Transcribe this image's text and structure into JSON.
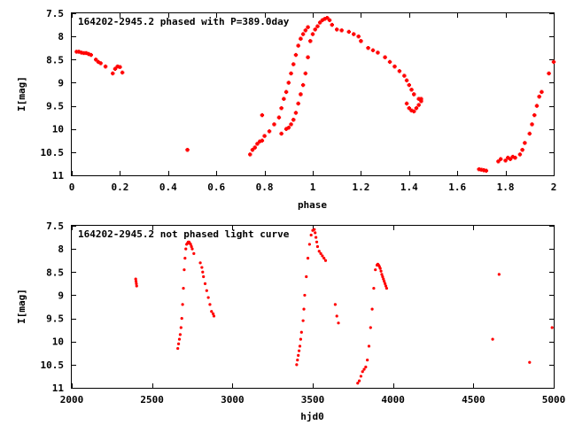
{
  "chart_data": [
    {
      "type": "scatter",
      "title": "164202-2945.2 phased with P=389.0day",
      "xlabel": "phase",
      "ylabel": "I[mag]",
      "xlim": [
        0,
        2
      ],
      "ylim": [
        11,
        7.5
      ],
      "y_inverted": true,
      "grid": false,
      "xticks": [
        0,
        0.2,
        0.4,
        0.6,
        0.8,
        1,
        1.2,
        1.4,
        1.6,
        1.8,
        2
      ],
      "xtick_labels": [
        "0",
        "0.2",
        "0.4",
        "0.6",
        "0.8",
        "1",
        "1.2",
        "1.4",
        "1.6",
        "1.8",
        "2"
      ],
      "yticks": [
        7.5,
        8,
        8.5,
        9,
        9.5,
        10,
        10.5,
        11
      ],
      "ytick_labels": [
        "7.5",
        "8",
        "8.5",
        "9",
        "9.5",
        "10",
        "10.5",
        "11"
      ],
      "marker_color": "#ff0000",
      "marker": "filled-cross",
      "series": [
        {
          "x": [
            0.02,
            0.03,
            0.04,
            0.05,
            0.06,
            0.07,
            0.08,
            0.1,
            0.11,
            0.12,
            0.14,
            0.17,
            0.18,
            0.19,
            0.2,
            0.21,
            0.48,
            0.74,
            0.75,
            0.76,
            0.77,
            0.78,
            0.79,
            0.8,
            0.82,
            0.84,
            0.86,
            0.87,
            0.88,
            0.89,
            0.9,
            0.91,
            0.92,
            0.93,
            0.94,
            0.95,
            0.96,
            0.97,
            0.98,
            0.79,
            0.87,
            0.89,
            0.9,
            0.91,
            0.92,
            0.93,
            0.94,
            0.95,
            0.96,
            0.97,
            0.98,
            0.99,
            1.0,
            1.01,
            1.02,
            1.03,
            1.04,
            1.05,
            1.06,
            1.07,
            1.08,
            1.1,
            1.12,
            1.15,
            1.17,
            1.19,
            1.2,
            1.23,
            1.25,
            1.27,
            1.3,
            1.32,
            1.34,
            1.36,
            1.38,
            1.39,
            1.4,
            1.41,
            1.42,
            1.44,
            1.45,
            1.39,
            1.4,
            1.41,
            1.42,
            1.43,
            1.44,
            1.45,
            1.69,
            1.7,
            1.71,
            1.72,
            1.77,
            1.78,
            1.8,
            1.81,
            1.82,
            1.83,
            1.84,
            1.86,
            1.87,
            1.88,
            1.9,
            1.91,
            1.92,
            1.93,
            1.94,
            1.95,
            1.98,
            2.0
          ],
          "y": [
            8.33,
            8.33,
            8.35,
            8.36,
            8.36,
            8.38,
            8.4,
            8.5,
            8.55,
            8.58,
            8.65,
            8.8,
            8.7,
            8.65,
            8.66,
            8.78,
            10.45,
            10.55,
            10.45,
            10.4,
            10.32,
            10.27,
            10.25,
            10.15,
            10.05,
            9.9,
            9.75,
            9.55,
            9.35,
            9.2,
            9.0,
            8.8,
            8.6,
            8.4,
            8.2,
            8.05,
            7.95,
            7.87,
            7.8,
            9.7,
            10.1,
            10.0,
            9.97,
            9.9,
            9.8,
            9.65,
            9.45,
            9.25,
            9.05,
            8.8,
            8.45,
            8.1,
            7.95,
            7.85,
            7.78,
            7.7,
            7.65,
            7.62,
            7.6,
            7.65,
            7.75,
            7.85,
            7.87,
            7.9,
            7.95,
            8.0,
            8.1,
            8.25,
            8.3,
            8.35,
            8.45,
            8.55,
            8.65,
            8.75,
            8.85,
            8.95,
            9.05,
            9.15,
            9.25,
            9.35,
            9.4,
            9.45,
            9.55,
            9.6,
            9.62,
            9.55,
            9.48,
            9.35,
            10.87,
            10.88,
            10.89,
            10.9,
            10.7,
            10.65,
            10.68,
            10.62,
            10.65,
            10.6,
            10.62,
            10.55,
            10.45,
            10.3,
            10.1,
            9.9,
            9.7,
            9.5,
            9.3,
            9.2,
            8.8,
            8.55
          ]
        }
      ]
    },
    {
      "type": "scatter",
      "title": "164202-2945.2 not phased light curve",
      "xlabel": "hjd0",
      "ylabel": "I[mag]",
      "xlim": [
        2000,
        5000
      ],
      "ylim": [
        11,
        7.5
      ],
      "y_inverted": true,
      "grid": false,
      "xticks": [
        2000,
        2500,
        3000,
        3500,
        4000,
        4500,
        5000
      ],
      "xtick_labels": [
        "2000",
        "2500",
        "3000",
        "3500",
        "4000",
        "4500",
        "5000"
      ],
      "yticks": [
        7.5,
        8,
        8.5,
        9,
        9.5,
        10,
        10.5,
        11
      ],
      "ytick_labels": [
        "7.5",
        "8",
        "8.5",
        "9",
        "9.5",
        "10",
        "10.5",
        "11"
      ],
      "marker_color": "#ff0000",
      "marker": "dot",
      "series": [
        {
          "x": [
            2398,
            2400,
            2402,
            2404,
            2660,
            2665,
            2670,
            2675,
            2680,
            2685,
            2690,
            2695,
            2700,
            2705,
            2710,
            2715,
            2720,
            2725,
            2730,
            2735,
            2740,
            2745,
            2750,
            2760,
            2800,
            2810,
            2815,
            2820,
            2830,
            2840,
            2850,
            2860,
            2870,
            2880,
            2885,
            3400,
            3405,
            3410,
            3415,
            3420,
            3425,
            3430,
            3440,
            3445,
            3450,
            3460,
            3470,
            3480,
            3490,
            3500,
            3510,
            3515,
            3520,
            3525,
            3530,
            3540,
            3550,
            3560,
            3570,
            3580,
            3640,
            3650,
            3660,
            3780,
            3790,
            3800,
            3810,
            3820,
            3830,
            3840,
            3850,
            3860,
            3870,
            3880,
            3890,
            3900,
            3905,
            3910,
            3915,
            3920,
            3925,
            3930,
            3935,
            3940,
            3945,
            3950,
            3955,
            3960,
            4620,
            4660,
            4850,
            4990
          ],
          "y": [
            8.65,
            8.7,
            8.75,
            8.8,
            10.15,
            10.05,
            9.95,
            9.85,
            9.7,
            9.5,
            9.2,
            8.85,
            8.45,
            8.2,
            8.0,
            7.9,
            7.88,
            7.85,
            7.85,
            7.88,
            7.9,
            7.95,
            8.0,
            8.1,
            8.3,
            8.4,
            8.5,
            8.6,
            8.75,
            8.9,
            9.05,
            9.2,
            9.35,
            9.4,
            9.45,
            10.5,
            10.4,
            10.3,
            10.2,
            10.1,
            9.95,
            9.8,
            9.55,
            9.3,
            9.0,
            8.6,
            8.2,
            7.9,
            7.7,
            7.6,
            7.58,
            7.65,
            7.75,
            7.85,
            7.95,
            8.05,
            8.1,
            8.15,
            8.2,
            8.25,
            9.2,
            9.45,
            9.6,
            10.9,
            10.85,
            10.75,
            10.65,
            10.6,
            10.55,
            10.4,
            10.1,
            9.7,
            9.3,
            8.85,
            8.45,
            8.35,
            8.33,
            8.35,
            8.38,
            8.42,
            8.48,
            8.55,
            8.6,
            8.65,
            8.7,
            8.75,
            8.8,
            8.85,
            9.95,
            8.55,
            10.45,
            9.7
          ]
        }
      ]
    }
  ]
}
